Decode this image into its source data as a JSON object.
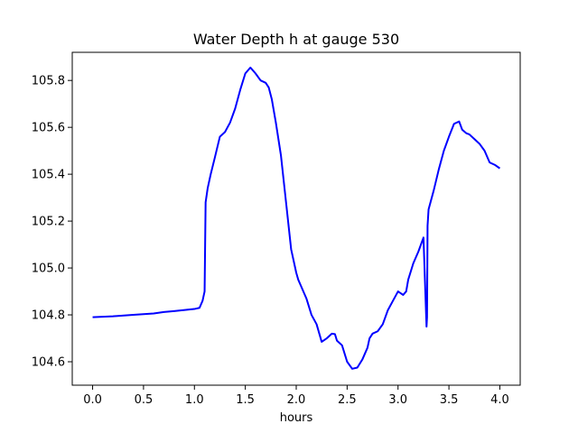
{
  "chart_data": {
    "type": "line",
    "title": "Water Depth h at gauge 530",
    "xlabel": "hours",
    "ylabel": "",
    "xlim": [
      -0.2,
      4.2
    ],
    "ylim": [
      104.5,
      105.92
    ],
    "x_ticks": [
      0.0,
      0.5,
      1.0,
      1.5,
      2.0,
      2.5,
      3.0,
      3.5,
      4.0
    ],
    "x_tick_labels": [
      "0.0",
      "0.5",
      "1.0",
      "1.5",
      "2.0",
      "2.5",
      "3.0",
      "3.5",
      "4.0"
    ],
    "y_ticks": [
      104.6,
      104.8,
      105.0,
      105.2,
      105.4,
      105.6,
      105.8
    ],
    "y_tick_labels": [
      "104.6",
      "104.8",
      "105.0",
      "105.2",
      "105.4",
      "105.6",
      "105.8"
    ],
    "grid": false,
    "series": [
      {
        "color": "#0000ff",
        "x": [
          0.0,
          0.2,
          0.4,
          0.6,
          0.7,
          0.8,
          1.0,
          1.05,
          1.08,
          1.1,
          1.11,
          1.13,
          1.16,
          1.2,
          1.25,
          1.3,
          1.35,
          1.4,
          1.45,
          1.5,
          1.55,
          1.6,
          1.65,
          1.7,
          1.73,
          1.76,
          1.8,
          1.85,
          1.9,
          1.95,
          1.98,
          2.0,
          2.02,
          2.05,
          2.1,
          2.15,
          2.2,
          2.25,
          2.3,
          2.35,
          2.38,
          2.4,
          2.45,
          2.5,
          2.55,
          2.6,
          2.65,
          2.7,
          2.72,
          2.75,
          2.8,
          2.85,
          2.9,
          2.95,
          3.0,
          3.05,
          3.08,
          3.1,
          3.15,
          3.2,
          3.25,
          3.28,
          3.285,
          3.29,
          3.3,
          3.35,
          3.4,
          3.45,
          3.5,
          3.55,
          3.6,
          3.63,
          3.67,
          3.7,
          3.75,
          3.8,
          3.85,
          3.9,
          3.95,
          4.0
        ],
        "y": [
          104.79,
          104.794,
          104.8,
          104.806,
          104.812,
          104.816,
          104.825,
          104.83,
          104.86,
          104.9,
          105.28,
          105.34,
          105.4,
          105.47,
          105.56,
          105.58,
          105.62,
          105.68,
          105.76,
          105.83,
          105.855,
          105.83,
          105.8,
          105.79,
          105.77,
          105.72,
          105.62,
          105.48,
          105.28,
          105.08,
          105.02,
          104.98,
          104.95,
          104.92,
          104.87,
          104.8,
          104.76,
          104.685,
          104.7,
          104.72,
          104.718,
          104.69,
          104.67,
          104.6,
          104.57,
          104.575,
          104.61,
          104.66,
          104.7,
          104.72,
          104.73,
          104.76,
          104.82,
          104.86,
          104.9,
          104.885,
          104.9,
          104.95,
          105.02,
          105.07,
          105.13,
          104.75,
          104.79,
          105.18,
          105.25,
          105.33,
          105.42,
          105.5,
          105.56,
          105.615,
          105.625,
          105.59,
          105.575,
          105.57,
          105.55,
          105.53,
          105.5,
          105.45,
          105.44,
          105.425
        ]
      }
    ]
  }
}
